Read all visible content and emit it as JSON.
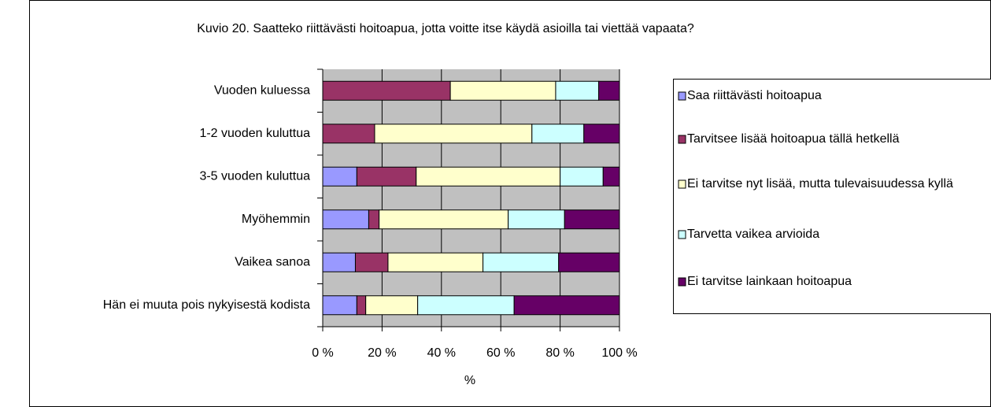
{
  "chart_data": {
    "type": "stacked_bar_horizontal",
    "title": "Kuvio 20. Saatteko riittävästi hoitoapua, jotta voitte itse käydä asioilla tai viettää vapaata?",
    "x_label": "%",
    "categories": [
      "Vuoden kuluessa",
      "1-2 vuoden kuluttua",
      "3-5 vuoden kuluttua",
      "Myöhemmin",
      "Vaikea sanoa",
      "Hän ei muuta pois nykyisestä kodista"
    ],
    "series": [
      {
        "name": "Saa riittävästi hoitoapua",
        "color": "#9999ff",
        "values": [
          0,
          0,
          11.5,
          15.5,
          11,
          11.5
        ]
      },
      {
        "name": "Tarvitsee lisää hoitoapua tällä hetkellä",
        "color": "#993366",
        "values": [
          43,
          17.5,
          20,
          3.5,
          11,
          3
        ]
      },
      {
        "name": "Ei tarvitse nyt lisää, mutta tulevaisuudessa kyllä",
        "color": "#ffffcc",
        "values": [
          35.5,
          53,
          48.5,
          43.5,
          32,
          17.5
        ]
      },
      {
        "name": "Tarvetta vaikea arvioida",
        "color": "#ccffff",
        "values": [
          14.5,
          17.5,
          14.5,
          19,
          25.5,
          32.5
        ]
      },
      {
        "name": "Ei tarvitse lainkaan hoitoapua",
        "color": "#660066",
        "values": [
          7,
          12,
          5.5,
          18.5,
          20.5,
          35.5
        ]
      }
    ],
    "xlim": [
      0,
      100
    ],
    "xticks": [
      {
        "value": 0,
        "label": "0 %"
      },
      {
        "value": 20,
        "label": "20 %"
      },
      {
        "value": 40,
        "label": "40 %"
      },
      {
        "value": 60,
        "label": "60 %"
      },
      {
        "value": 80,
        "label": "80 %"
      },
      {
        "value": 100,
        "label": "100 %"
      }
    ],
    "legend": "right"
  }
}
